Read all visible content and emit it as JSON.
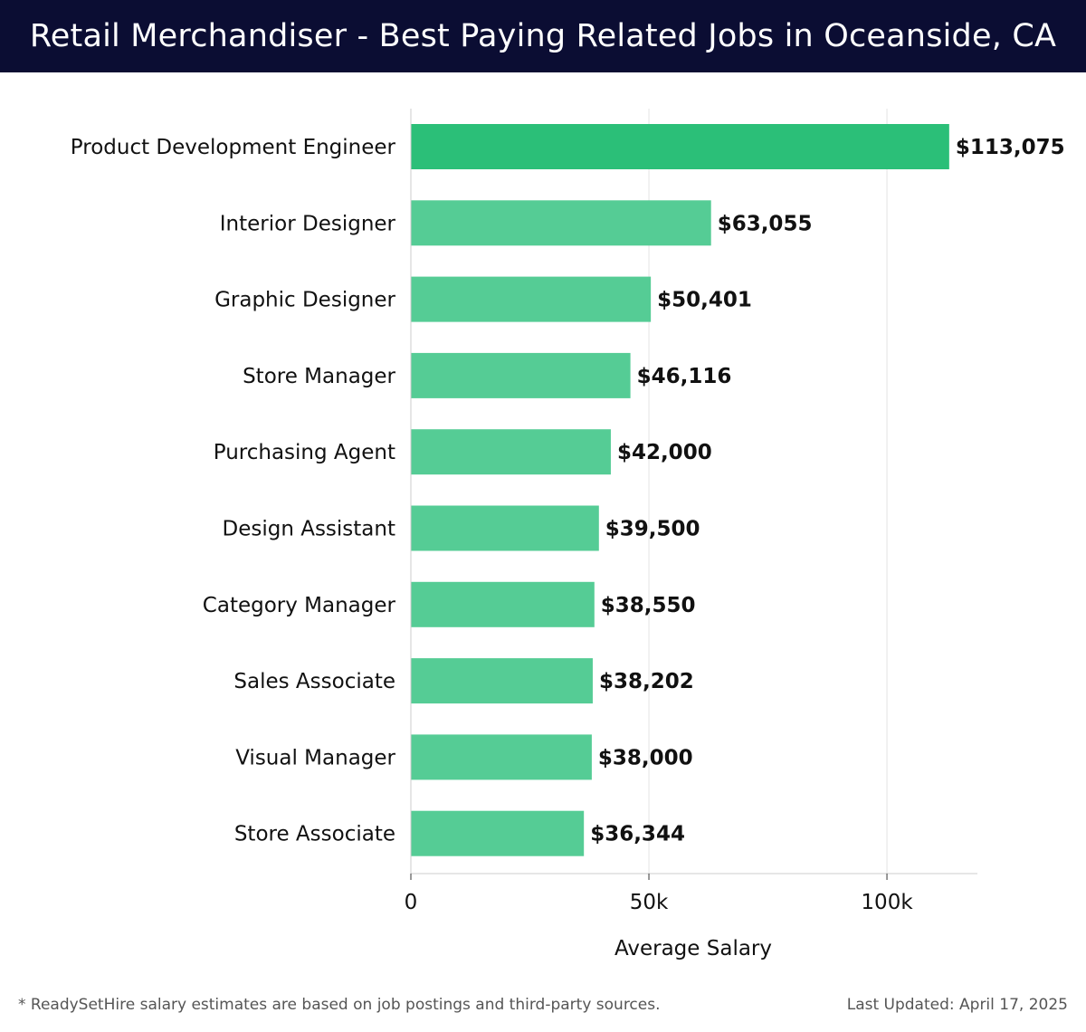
{
  "header": {
    "title": "Retail Merchandiser - Best Paying Related Jobs in Oceanside, CA"
  },
  "footer": {
    "note": "* ReadySetHire salary estimates are based on job postings and third-party sources.",
    "updated": "Last Updated: April 17, 2025"
  },
  "colors": {
    "header_bg": "#0b0d33",
    "bar_top": "#2bbf78",
    "bar": "#55cc95",
    "grid": "#e3e3e3"
  },
  "chart_data": {
    "type": "bar",
    "orientation": "horizontal",
    "categories": [
      "Product Development Engineer",
      "Interior Designer",
      "Graphic Designer",
      "Store Manager",
      "Purchasing Agent",
      "Design Assistant",
      "Category Manager",
      "Sales Associate",
      "Visual Manager",
      "Store Associate"
    ],
    "values": [
      113075,
      63055,
      50401,
      46116,
      42000,
      39500,
      38550,
      38202,
      38000,
      36344
    ],
    "value_labels": [
      "$113,075",
      "$63,055",
      "$50,401",
      "$46,116",
      "$42,000",
      "$39,500",
      "$38,550",
      "$38,202",
      "$38,000",
      "$36,344"
    ],
    "xlabel": "Average Salary",
    "ylabel": "",
    "xlim": [
      0,
      119000
    ],
    "xticks": [
      0,
      50000,
      100000
    ],
    "xtick_labels": [
      "0",
      "50k",
      "100k"
    ],
    "grid": true,
    "legend": "none"
  }
}
